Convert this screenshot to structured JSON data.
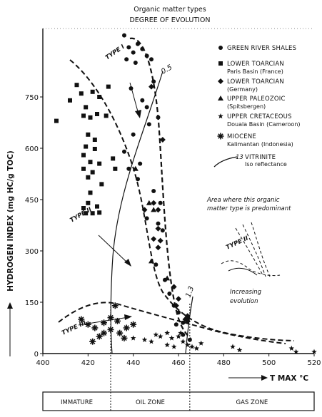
{
  "header": {
    "line1": "Organic matter types",
    "line2": "DEGREE OF EVOLUTION"
  },
  "chart_data": {
    "type": "scatter",
    "xlabel": "T MAX °C",
    "ylabel": "HYDROGEN INDEX (mg HC/g TOC)",
    "xlim": [
      400,
      520
    ],
    "ylim": [
      0,
      950
    ],
    "x_ticks": [
      400,
      420,
      440,
      460,
      480,
      500,
      520
    ],
    "y_ticks": [
      0,
      150,
      300,
      450,
      600,
      750
    ],
    "x_tick_labels": [
      "400",
      "420",
      "440",
      "460",
      "480",
      "500",
      "520"
    ],
    "y_tick_labels": [
      "0",
      "150",
      "300",
      "450",
      "600",
      "750"
    ],
    "zones": [
      {
        "label": "IMMATURE",
        "x_range": [
          400,
          430
        ]
      },
      {
        "label": "OIL ZONE",
        "x_range": [
          430,
          465
        ]
      },
      {
        "label": "GAS ZONE",
        "x_range": [
          465,
          520
        ]
      }
    ],
    "legend": [
      {
        "marker": "circle",
        "title": "GREEN RIVER SHALES",
        "subtitle": ""
      },
      {
        "marker": "square",
        "title": "LOWER TOARCIAN",
        "subtitle": "Paris Basin (France)"
      },
      {
        "marker": "diamond",
        "title": "LOWER TOARCIAN",
        "subtitle": "(Germany)"
      },
      {
        "marker": "triangle",
        "title": "UPPER PALEOZOIC",
        "subtitle": "(Spitsbergen)"
      },
      {
        "marker": "star",
        "title": "UPPER CRETACEOUS",
        "subtitle": "Douala Basin (Cameroon)"
      },
      {
        "marker": "asterisk",
        "title": "MIOCENE",
        "subtitle": "Kalimantan (Indonesia)"
      },
      {
        "marker": "line",
        "title": "13",
        "subtitle": "VITRINITE",
        "subtitle2": "Iso reflectance"
      }
    ],
    "curve_labels": {
      "type1": "TYPE I",
      "type2": "TYPE II",
      "type3": "TYPE III",
      "iso05": "0.5",
      "iso13": "1.3"
    },
    "annotations": {
      "predominant": [
        "Area where this organic",
        "matter type is predominant"
      ],
      "inset_label": "TYPE II",
      "increasing": [
        "Increasing",
        "evolution"
      ]
    },
    "series": [
      {
        "name": "GREEN RIVER SHALES",
        "marker": "circle",
        "points": [
          [
            436,
            930
          ],
          [
            438,
            895
          ],
          [
            440,
            880
          ],
          [
            442,
            905
          ],
          [
            437,
            860
          ],
          [
            441,
            850
          ],
          [
            444,
            890
          ],
          [
            446,
            870
          ],
          [
            448,
            860
          ],
          [
            439,
            775
          ],
          [
            444,
            740
          ],
          [
            446,
            720
          ],
          [
            449,
            795
          ],
          [
            451,
            690
          ],
          [
            447,
            670
          ],
          [
            440,
            640
          ],
          [
            436,
            590
          ],
          [
            443,
            555
          ],
          [
            438,
            540
          ],
          [
            442,
            510
          ],
          [
            449,
            475
          ],
          [
            452,
            440
          ],
          [
            446,
            395
          ],
          [
            451,
            380
          ],
          [
            453,
            360
          ],
          [
            450,
            260
          ],
          [
            454,
            215
          ],
          [
            456,
            175
          ],
          [
            458,
            140
          ],
          [
            460,
            120
          ],
          [
            459,
            85
          ],
          [
            462,
            90
          ],
          [
            464,
            100
          ],
          [
            462,
            55
          ],
          [
            465,
            40
          ]
        ]
      },
      {
        "name": "LOWER TOARCIAN Paris Basin",
        "marker": "square",
        "points": [
          [
            406,
            680
          ],
          [
            415,
            785
          ],
          [
            417,
            760
          ],
          [
            422,
            765
          ],
          [
            425,
            750
          ],
          [
            429,
            780
          ],
          [
            412,
            740
          ],
          [
            419,
            720
          ],
          [
            424,
            700
          ],
          [
            418,
            695
          ],
          [
            421,
            690
          ],
          [
            428,
            695
          ],
          [
            420,
            640
          ],
          [
            423,
            625
          ],
          [
            419,
            605
          ],
          [
            423,
            598
          ],
          [
            418,
            580
          ],
          [
            421,
            560
          ],
          [
            425,
            555
          ],
          [
            418,
            540
          ],
          [
            422,
            530
          ],
          [
            420,
            515
          ],
          [
            426,
            495
          ],
          [
            421,
            470
          ],
          [
            420,
            440
          ],
          [
            424,
            430
          ],
          [
            418,
            425
          ],
          [
            422,
            410
          ],
          [
            425,
            412
          ],
          [
            419,
            410
          ],
          [
            431,
            570
          ],
          [
            432,
            540
          ]
        ]
      },
      {
        "name": "LOWER TOARCIAN Germany",
        "marker": "diamond",
        "points": [
          [
            448,
            780
          ],
          [
            453,
            625
          ],
          [
            449,
            440
          ],
          [
            445,
            420
          ],
          [
            451,
            420
          ],
          [
            451,
            365
          ],
          [
            449,
            335
          ],
          [
            452,
            330
          ],
          [
            451,
            310
          ],
          [
            458,
            195
          ],
          [
            460,
            160
          ],
          [
            459,
            140
          ],
          [
            464,
            110
          ],
          [
            463,
            100
          ],
          [
            464,
            95
          ]
        ]
      },
      {
        "name": "UPPER PALEOZOIC",
        "marker": "triangle",
        "points": [
          [
            441,
            540
          ],
          [
            447,
            440
          ],
          [
            449,
            420
          ],
          [
            448,
            270
          ],
          [
            455,
            220
          ]
        ]
      },
      {
        "name": "UPPER CRETACEOUS",
        "marker": "star",
        "points": [
          [
            440,
            45
          ],
          [
            445,
            40
          ],
          [
            448,
            35
          ],
          [
            450,
            55
          ],
          [
            452,
            50
          ],
          [
            455,
            60
          ],
          [
            457,
            45
          ],
          [
            460,
            50
          ],
          [
            462,
            35
          ],
          [
            464,
            25
          ],
          [
            466,
            20
          ],
          [
            468,
            15
          ],
          [
            458,
            20
          ],
          [
            455,
            25
          ],
          [
            461,
            60
          ],
          [
            470,
            30
          ],
          [
            484,
            20
          ],
          [
            487,
            10
          ],
          [
            510,
            15
          ],
          [
            512,
            5
          ],
          [
            520,
            5
          ]
        ]
      },
      {
        "name": "MIOCENE",
        "marker": "asterisk",
        "points": [
          [
            417,
            100
          ],
          [
            420,
            85
          ],
          [
            423,
            75
          ],
          [
            427,
            90
          ],
          [
            430,
            105
          ],
          [
            432,
            140
          ],
          [
            433,
            95
          ],
          [
            430,
            70
          ],
          [
            427,
            60
          ],
          [
            434,
            60
          ],
          [
            425,
            50
          ],
          [
            422,
            35
          ],
          [
            437,
            75
          ],
          [
            440,
            85
          ],
          [
            436,
            45
          ]
        ]
      }
    ]
  }
}
